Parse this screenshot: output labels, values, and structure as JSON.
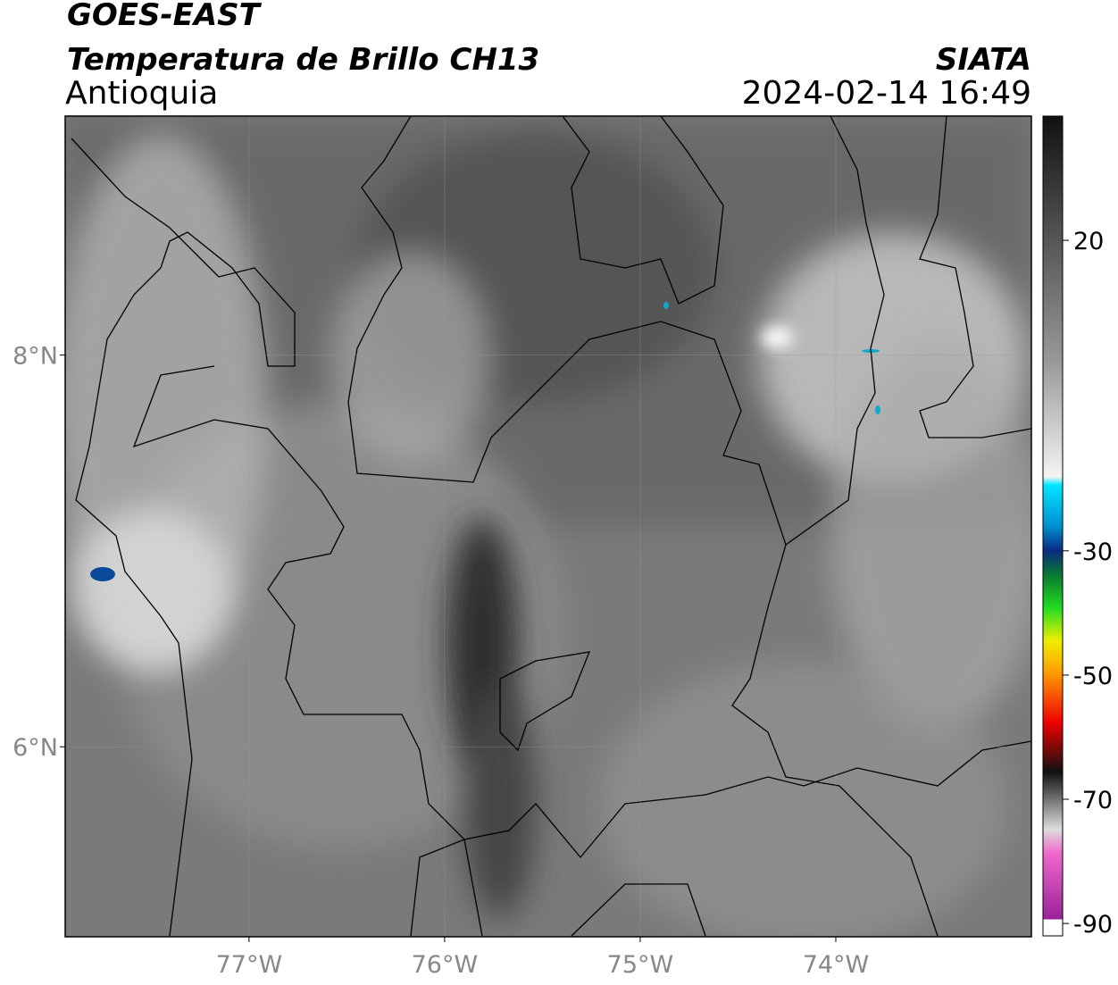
{
  "header": {
    "title": "GOES-EAST",
    "subtitle": "Temperatura de Brillo CH13",
    "region": "Antioquia",
    "source": "SIATA",
    "datetime": "2024-02-14 16:49"
  },
  "map": {
    "xlim": [
      -77.94,
      -73
    ],
    "ylim": [
      5.03,
      9.22
    ],
    "xticks": [
      {
        "value": -77,
        "label": "77°W"
      },
      {
        "value": -76,
        "label": "76°W"
      },
      {
        "value": -75,
        "label": "75°W"
      },
      {
        "value": -74,
        "label": "74°W"
      }
    ],
    "yticks": [
      {
        "value": 8,
        "label": "8°N"
      },
      {
        "value": 6,
        "label": "6°N"
      }
    ],
    "grid": true
  },
  "colorbar": {
    "lim": [
      -92,
      40
    ],
    "ticks": [
      20,
      -30,
      -50,
      -70,
      -90
    ]
  }
}
